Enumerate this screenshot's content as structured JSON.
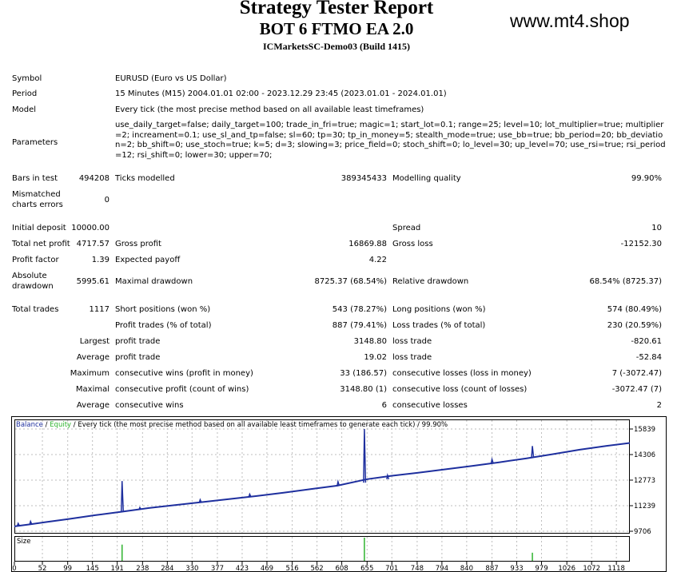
{
  "header": {
    "title": "Strategy Tester Report",
    "ea_name": "BOT 6 FTMO EA 2.0",
    "server": "ICMarketsSC-Demo03 (Build 1415)",
    "website": "www.mt4.shop"
  },
  "info": {
    "symbol_label": "Symbol",
    "symbol_value": "EURUSD (Euro vs US Dollar)",
    "period_label": "Period",
    "period_value": "15 Minutes (M15) 2004.01.01 02:00 - 2023.12.29 23:45 (2023.01.01 - 2024.01.01)",
    "model_label": "Model",
    "model_value": "Every tick (the most precise method based on all available least timeframes)",
    "parameters_label": "Parameters",
    "parameters_value": "use_daily_target=false; daily_target=100; trade_in_fri=true; magic=1; start_lot=0.1; range=25; level=10; lot_multiplier=true; multiplier=2; increament=0.1; use_sl_and_tp=false; sl=60; tp=30; tp_in_money=5; stealth_mode=true; use_bb=true; bb_period=20; bb_deviation=2; bb_shift=0; use_stoch=true; k=5; d=3; slowing=3; price_field=0; stoch_shift=0; lo_level=30; up_level=70; use_rsi=true; rsi_period=12; rsi_shift=0; lower=30; upper=70;"
  },
  "stats": {
    "bars_label": "Bars in test",
    "bars_value": "494208",
    "ticks_label": "Ticks modelled",
    "ticks_value": "389345433",
    "quality_label": "Modelling quality",
    "quality_value": "99.90%",
    "mismatch_label_1": "Mismatched",
    "mismatch_label_2": "charts errors",
    "mismatch_value": "0",
    "initial_deposit_label": "Initial deposit",
    "initial_deposit_value": "10000.00",
    "spread_label": "Spread",
    "spread_value": "10",
    "net_profit_label": "Total net profit",
    "net_profit_value": "4717.57",
    "gross_profit_label": "Gross profit",
    "gross_profit_value": "16869.88",
    "gross_loss_label": "Gross loss",
    "gross_loss_value": "-12152.30",
    "profit_factor_label": "Profit factor",
    "profit_factor_value": "1.39",
    "expected_payoff_label": "Expected payoff",
    "expected_payoff_value": "4.22",
    "abs_drawdown_label_1": "Absolute",
    "abs_drawdown_label_2": "drawdown",
    "abs_drawdown_value": "5995.61",
    "max_drawdown_label": "Maximal drawdown",
    "max_drawdown_value": "8725.37 (68.54%)",
    "rel_drawdown_label": "Relative drawdown",
    "rel_drawdown_value": "68.54% (8725.37)",
    "total_trades_label": "Total trades",
    "total_trades_value": "1117",
    "short_label": "Short positions (won %)",
    "short_value": "543 (78.27%)",
    "long_label": "Long positions (won %)",
    "long_value": "574 (80.49%)",
    "profit_trades_label": "Profit trades (% of total)",
    "profit_trades_value": "887 (79.41%)",
    "loss_trades_label": "Loss trades (% of total)",
    "loss_trades_value": "230 (20.59%)",
    "largest_label": "Largest",
    "largest_profit_label": "profit trade",
    "largest_profit_value": "3148.80",
    "largest_loss_label": "loss trade",
    "largest_loss_value": "-820.61",
    "average_label": "Average",
    "average_profit_label": "profit trade",
    "average_profit_value": "19.02",
    "average_loss_label": "loss trade",
    "average_loss_value": "-52.84",
    "maximum_label": "Maximum",
    "max_cons_wins_label": "consecutive wins (profit in money)",
    "max_cons_wins_value": "33 (186.57)",
    "max_cons_losses_label": "consecutive losses (loss in money)",
    "max_cons_losses_value": "7 (-3072.47)",
    "maximal_label": "Maximal",
    "maximal_cons_profit_label": "consecutive profit (count of wins)",
    "maximal_cons_profit_value": "3148.80 (1)",
    "maximal_cons_loss_label": "consecutive loss (count of losses)",
    "maximal_cons_loss_value": "-3072.47 (7)",
    "avg_cons_label": "Average",
    "avg_cons_wins_label": "consecutive wins",
    "avg_cons_wins_value": "6",
    "avg_cons_losses_label": "consecutive losses",
    "avg_cons_losses_value": "2"
  },
  "chart_data": {
    "type": "line",
    "legend": {
      "balance": "Balance",
      "sep1": " / ",
      "equity": "Equity",
      "sep2": " / ",
      "desc": "Every tick (the most precise method based on all available least timeframes to generate each tick)",
      "sep3": " / ",
      "quality": "99.90%"
    },
    "size_label": "Size",
    "y_ticks": [
      15839,
      14306,
      12773,
      11239,
      9706
    ],
    "x_ticks": [
      0,
      52,
      99,
      145,
      191,
      238,
      284,
      330,
      377,
      423,
      469,
      516,
      562,
      608,
      655,
      701,
      748,
      794,
      840,
      887,
      933,
      979,
      1026,
      1072,
      1118
    ],
    "ylim": [
      9706,
      15839
    ],
    "xlim": [
      0,
      1143
    ],
    "colors": {
      "balance": "#1e2f9e",
      "equity": "#2fb32f",
      "size": "#2fb32f"
    },
    "series": [
      {
        "name": "Balance",
        "x": [
          0,
          30,
          60,
          100,
          150,
          200,
          250,
          300,
          350,
          400,
          450,
          500,
          550,
          600,
          655,
          700,
          750,
          800,
          850,
          900,
          950,
          1000,
          1050,
          1100,
          1143
        ],
        "values": [
          10000,
          10130,
          10260,
          10440,
          10670,
          10880,
          11100,
          11280,
          11460,
          11640,
          11820,
          12020,
          12230,
          12440,
          12830,
          13030,
          13220,
          13420,
          13620,
          13840,
          14070,
          14330,
          14600,
          14830,
          15000
        ]
      }
    ],
    "spikes": [
      {
        "x": 7,
        "base": 10040,
        "peak": 10180
      },
      {
        "x": 30,
        "base": 10130,
        "peak": 10300
      },
      {
        "x": 200,
        "base": 10880,
        "peak": 12720
      },
      {
        "x": 233,
        "base": 11010,
        "peak": 11130
      },
      {
        "x": 345,
        "base": 11440,
        "peak": 11600
      },
      {
        "x": 437,
        "base": 11780,
        "peak": 11930
      },
      {
        "x": 601,
        "base": 12450,
        "peak": 12680
      },
      {
        "x": 650,
        "base": 12620,
        "peak": 15839
      },
      {
        "x": 693,
        "base": 12830,
        "peak": 13060
      },
      {
        "x": 887,
        "base": 13790,
        "peak": 14020
      },
      {
        "x": 962,
        "base": 14140,
        "peak": 14820
      }
    ],
    "size_bars": [
      {
        "x": 200,
        "value": 0.7
      },
      {
        "x": 650,
        "value": 1.0
      },
      {
        "x": 962,
        "value": 0.35
      }
    ]
  }
}
